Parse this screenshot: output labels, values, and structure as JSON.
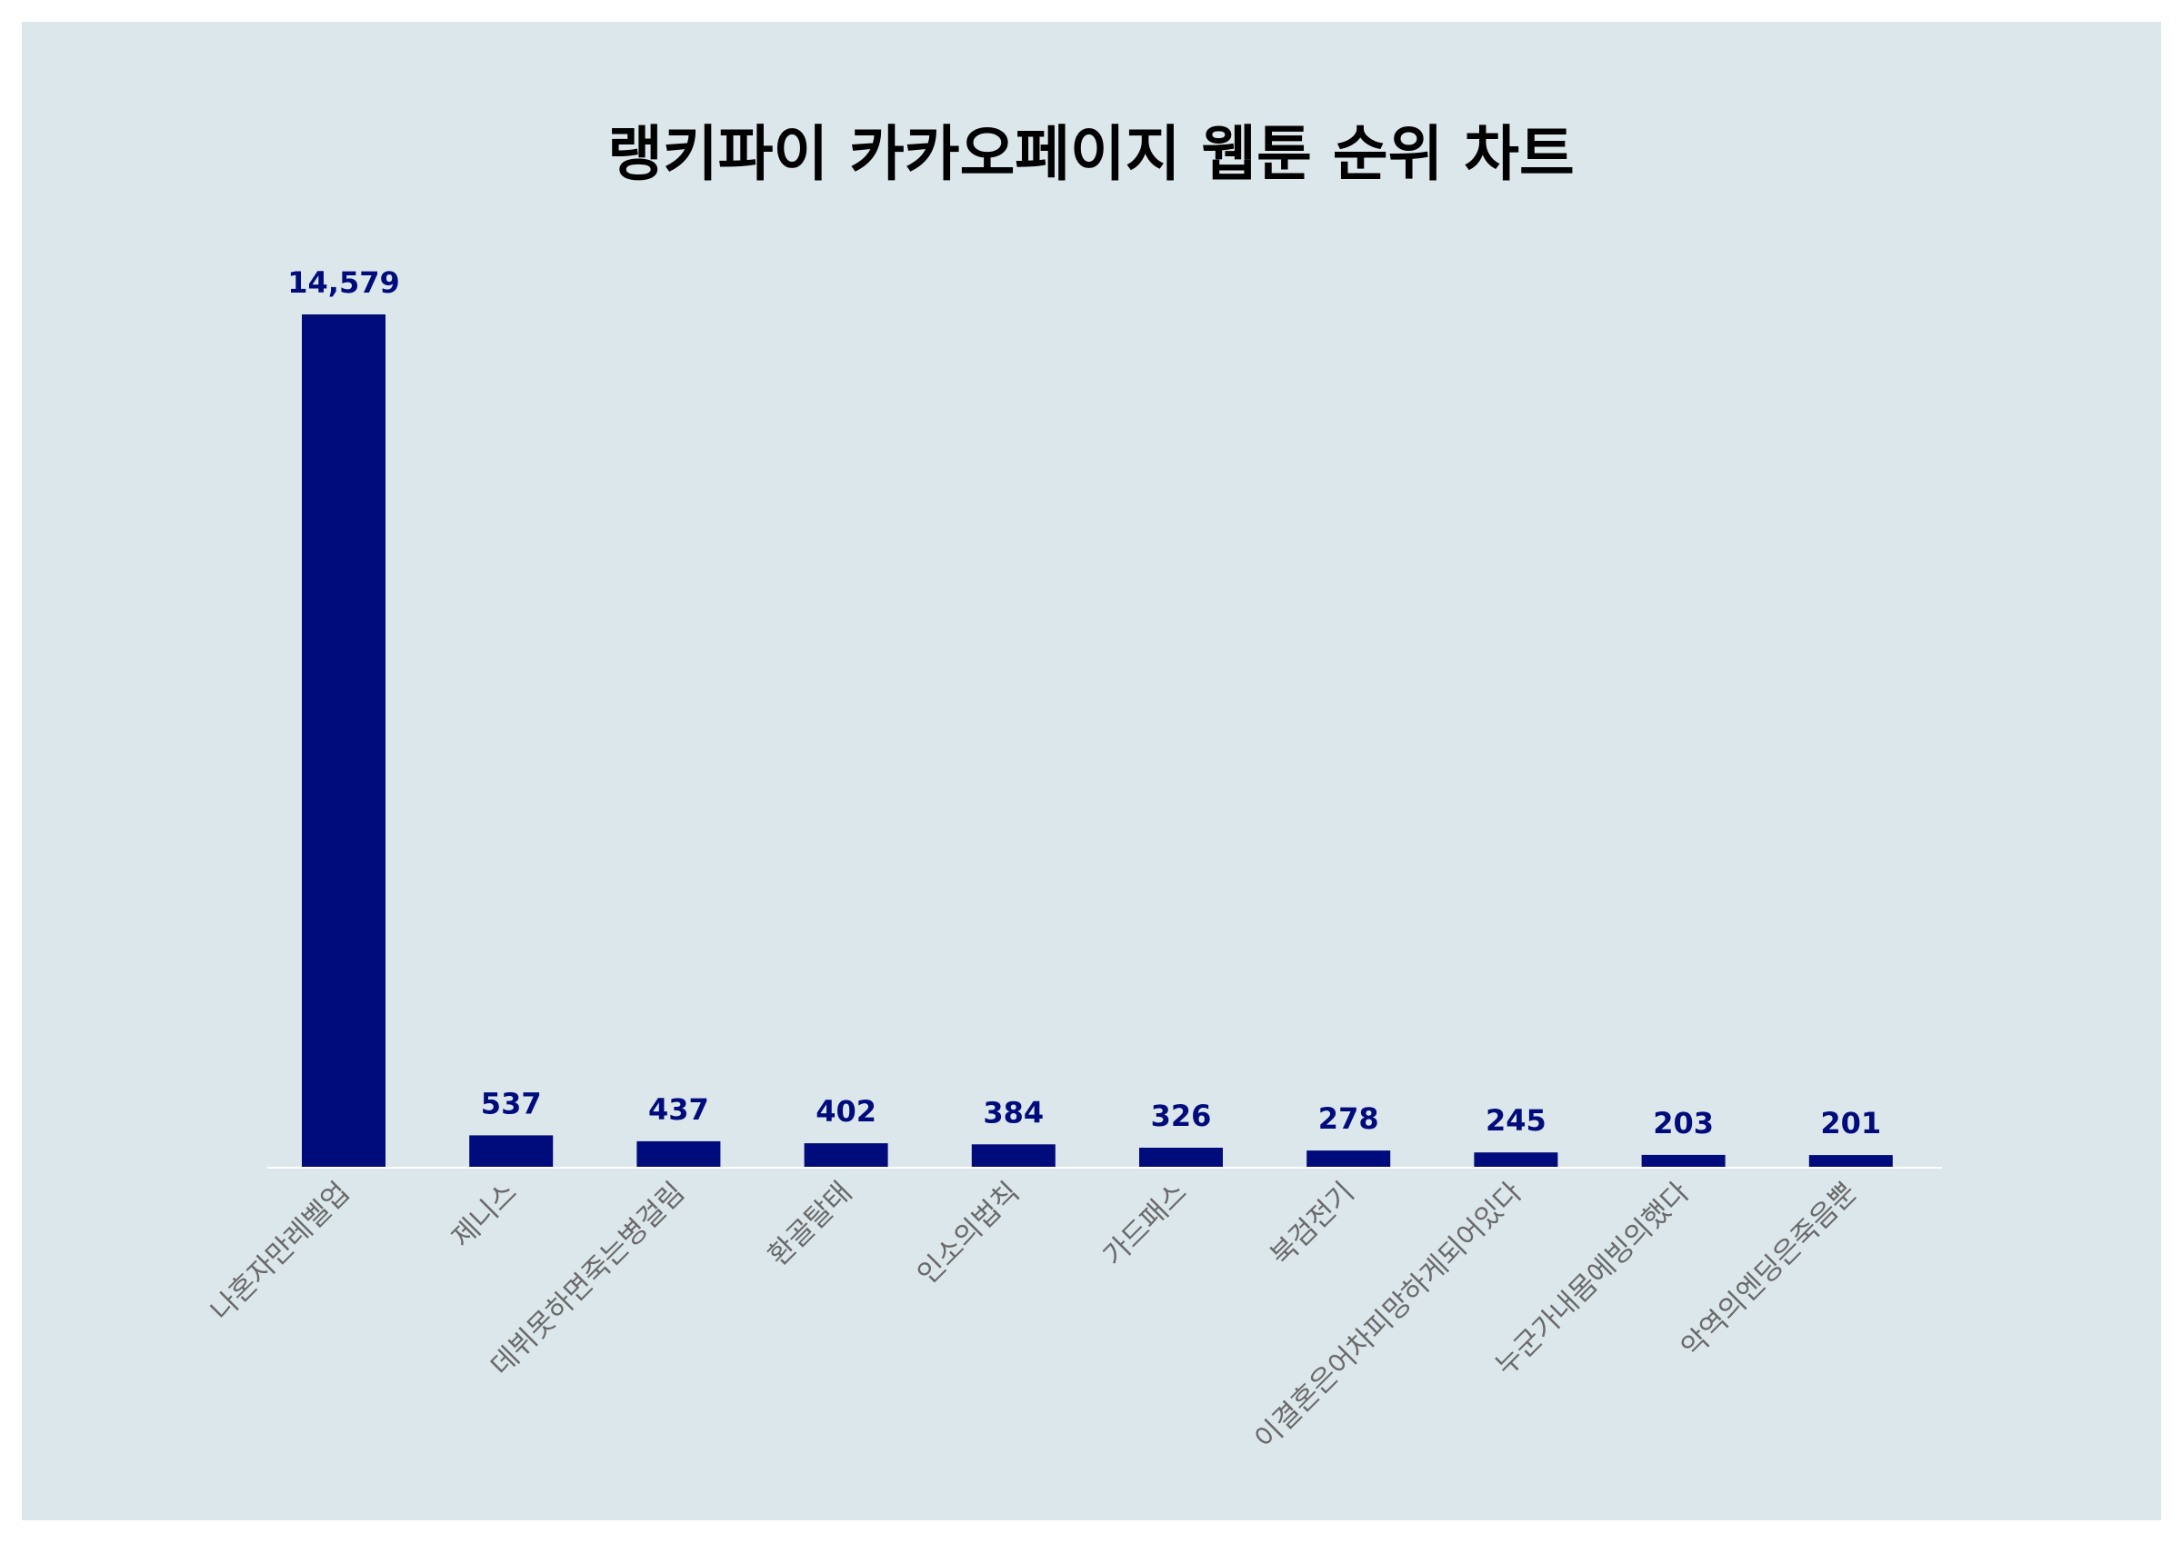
{
  "colors": {
    "background": "#dce7ec",
    "bar": "#000b7c",
    "value_label": "#000b7c",
    "tick_label": "#6a6a6a",
    "axis_line": "#ffffff",
    "title": "#000000"
  },
  "chart_data": {
    "type": "bar",
    "title": "랭키파이 카카오페이지 웹툰 순위 차트",
    "xlabel": "",
    "ylabel": "",
    "categories": [
      "나혼자만레벨업",
      "제니스",
      "데뷔못하면죽는병걸림",
      "환골탈태",
      "인소의법칙",
      "가드패스",
      "북검전기",
      "이결혼은어차피망하게되어있다",
      "누군가내몸에빙의했다",
      "악역의엔딩은죽음뿐"
    ],
    "values": [
      14579,
      537,
      437,
      402,
      384,
      326,
      278,
      245,
      203,
      201
    ],
    "value_labels": [
      "14,579",
      "537",
      "437",
      "402",
      "384",
      "326",
      "278",
      "245",
      "203",
      "201"
    ],
    "ylim": [
      0,
      14579
    ],
    "grid": false,
    "legend": "none",
    "tick_rotation_deg": -45
  }
}
